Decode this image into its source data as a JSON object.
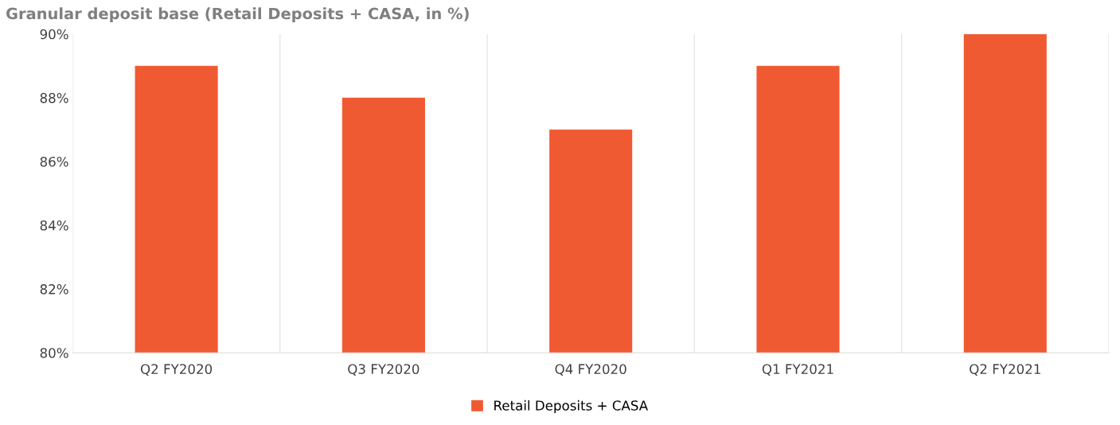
{
  "chart_data": {
    "type": "bar",
    "title": "Granular deposit base (Retail Deposits + CASA, in %)",
    "categories": [
      "Q2 FY2020",
      "Q3 FY2020",
      "Q4 FY2020",
      "Q1 FY2021",
      "Q2 FY2021"
    ],
    "series": [
      {
        "name": "Retail Deposits + CASA",
        "color": "#f05a32",
        "values": [
          89,
          88,
          87,
          89,
          90
        ]
      }
    ],
    "ylim": [
      80,
      90
    ],
    "yticks": [
      {
        "value": 80,
        "label": "80%"
      },
      {
        "value": 82,
        "label": "82%"
      },
      {
        "value": 84,
        "label": "84%"
      },
      {
        "value": 86,
        "label": "86%"
      },
      {
        "value": 88,
        "label": "88%"
      },
      {
        "value": 90,
        "label": "90%"
      }
    ],
    "grid": "x",
    "legend": "bottom"
  }
}
